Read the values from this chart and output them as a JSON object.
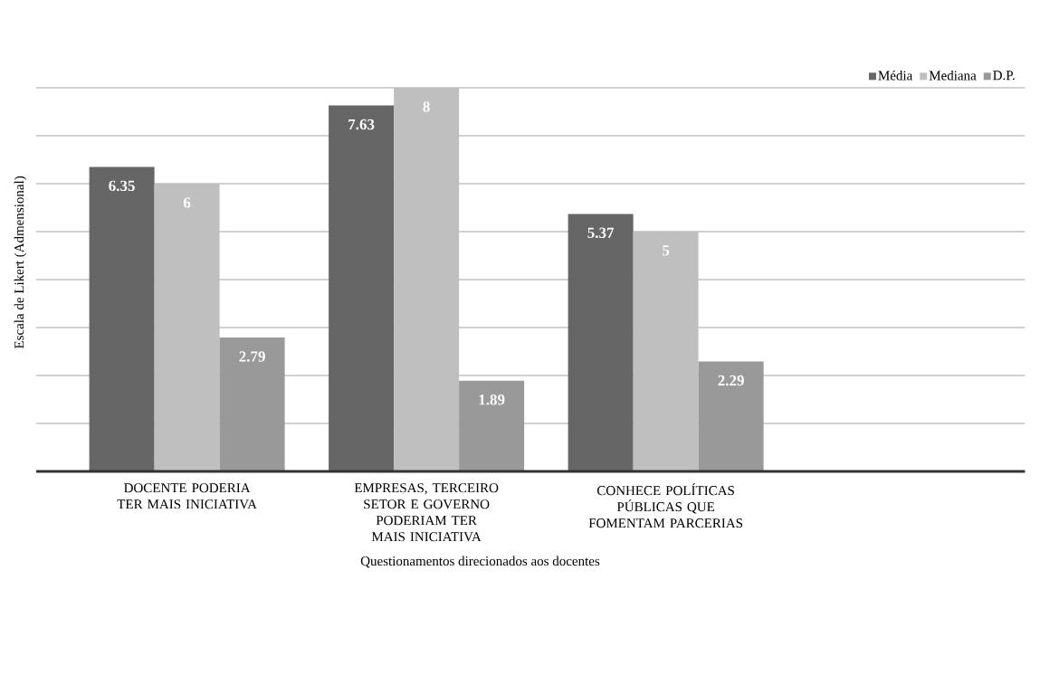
{
  "chart_data": {
    "type": "bar",
    "xlabel": "Questionamentos direcionados aos docentes",
    "ylabel": "Escala de Likert (Admensional)",
    "categories": [
      "DOCENTE PODERIA TER MAIS INICIATIVA",
      "EMPRESAS, TERCEIRO SETOR E GOVERNO PODERIAM TER MAIS INICIATIVA",
      "CONHECE POLÍTICAS PÚBLICAS QUE FOMENTAM PARCERIAS",
      null
    ],
    "series": [
      {
        "name": "Média",
        "color": "#666666",
        "values": [
          6.35,
          7.63,
          5.37,
          null
        ]
      },
      {
        "name": "Mediana",
        "color": "#bfbfbf",
        "values": [
          6,
          8,
          5,
          null
        ]
      },
      {
        "name": "D.P.",
        "color": "#999999",
        "values": [
          2.79,
          1.89,
          2.29,
          null
        ]
      }
    ],
    "ylim": [
      0,
      8
    ],
    "yticks": [
      {
        "value": 0,
        "label": null
      },
      {
        "value": 1,
        "label": null
      },
      {
        "value": 2,
        "label": null
      },
      {
        "value": 3,
        "label": null
      },
      {
        "value": 4,
        "label": null
      },
      {
        "value": 5,
        "label": null
      },
      {
        "value": 6,
        "label": null
      },
      {
        "value": 7,
        "label": null
      },
      {
        "value": 8,
        "label": null
      }
    ],
    "tick_labels": "x",
    "grid": "y",
    "legend": "top right",
    "data_labels": true
  }
}
